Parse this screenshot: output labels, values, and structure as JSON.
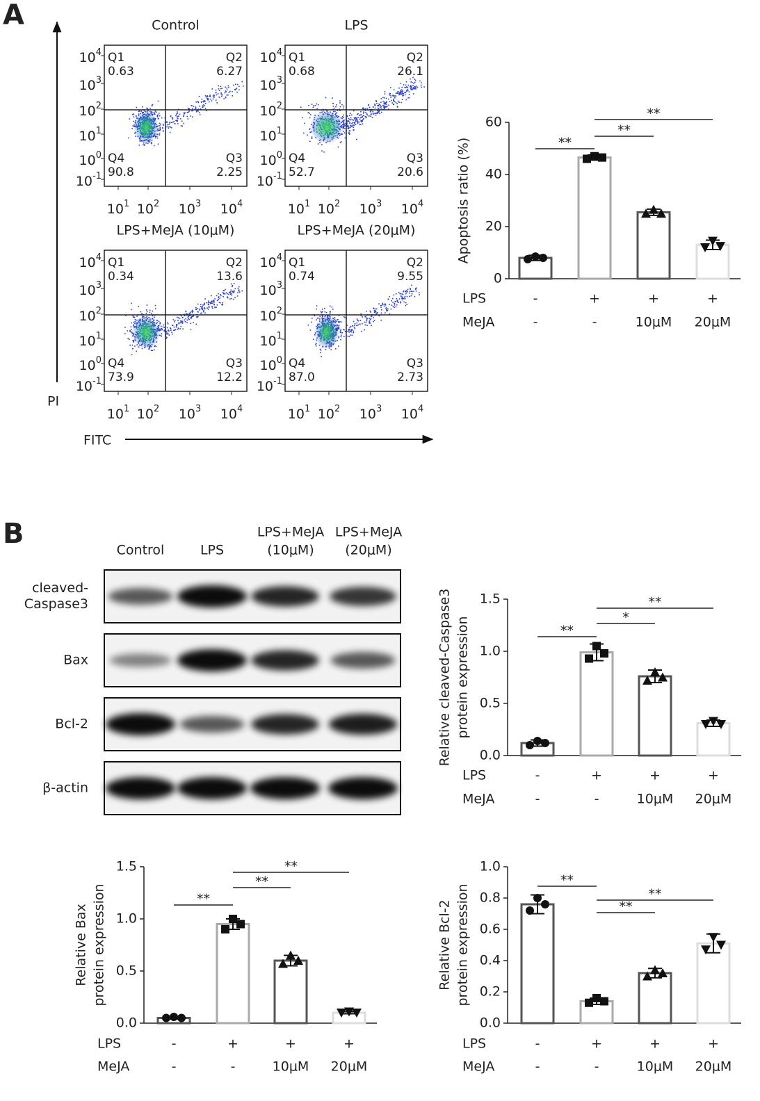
{
  "panel_labels": [
    "A",
    "B"
  ],
  "flow": {
    "y_axis_label": "PI",
    "x_axis_label": "FITC",
    "yticks": [
      {
        "base": "10",
        "exp": "4"
      },
      {
        "base": "10",
        "exp": "3"
      },
      {
        "base": "10",
        "exp": "2"
      },
      {
        "base": "10",
        "exp": "1"
      },
      {
        "base": "10",
        "exp": "0"
      },
      {
        "base": "10",
        "exp": "-1"
      }
    ],
    "xticks": [
      {
        "base": "10",
        "exp": "1"
      },
      {
        "base": "10",
        "exp": "2"
      },
      {
        "base": "10",
        "exp": "3"
      },
      {
        "base": "10",
        "exp": "4"
      }
    ],
    "plots": [
      {
        "title": "Control",
        "quadrants": [
          {
            "name": "Q1",
            "value": "0.63"
          },
          {
            "name": "Q2",
            "value": "6.27"
          },
          {
            "name": "Q3",
            "value": "2.25"
          },
          {
            "name": "Q4",
            "value": "90.8"
          }
        ]
      },
      {
        "title": "LPS",
        "quadrants": [
          {
            "name": "Q1",
            "value": "0.68"
          },
          {
            "name": "Q2",
            "value": "26.1"
          },
          {
            "name": "Q3",
            "value": "20.6"
          },
          {
            "name": "Q4",
            "value": "52.7"
          }
        ]
      },
      {
        "title": "LPS+MeJA (10μM)",
        "quadrants": [
          {
            "name": "Q1",
            "value": "0.34"
          },
          {
            "name": "Q2",
            "value": "13.6"
          },
          {
            "name": "Q3",
            "value": "12.2"
          },
          {
            "name": "Q4",
            "value": "73.9"
          }
        ]
      },
      {
        "title": "LPS+MeJA (20μM)",
        "quadrants": [
          {
            "name": "Q1",
            "value": "0.74"
          },
          {
            "name": "Q2",
            "value": "9.55"
          },
          {
            "name": "Q3",
            "value": "2.73"
          },
          {
            "name": "Q4",
            "value": "87.0"
          }
        ]
      }
    ]
  },
  "blot": {
    "columns": [
      [
        "Control"
      ],
      [
        "LPS"
      ],
      [
        "LPS+MeJA",
        "(10μM)"
      ],
      [
        "LPS+MeJA",
        "(20μM)"
      ]
    ],
    "rows": [
      [
        "cleaved-",
        "Caspase3"
      ],
      [
        "Bax"
      ],
      [
        "Bcl-2"
      ],
      [
        "β-actin"
      ]
    ]
  },
  "chart_data": [
    {
      "type": "bar",
      "ylabel": [
        "Apoptosis ratio (%)"
      ],
      "category_rows": [
        {
          "name": "LPS",
          "labels": [
            "-",
            "+",
            "+",
            "+"
          ]
        },
        {
          "name": "MeJA",
          "labels": [
            "-",
            "-",
            "10μM",
            "20μM"
          ]
        }
      ],
      "values": [
        8,
        46.5,
        25.5,
        13
      ],
      "errors": [
        1,
        1,
        1.2,
        1.8
      ],
      "points": [
        [
          7.5,
          8.5,
          8
        ],
        [
          46,
          47,
          46.5
        ],
        [
          25,
          26.5,
          25
        ],
        [
          12,
          14.5,
          12.5
        ]
      ],
      "markers": [
        "circle",
        "square",
        "triangle",
        "triangle-down"
      ],
      "colors": [
        "#555555",
        "#aaaaaa",
        "#555555",
        "#dddddd"
      ],
      "ylim": [
        0,
        60
      ],
      "yticks": [
        0,
        20,
        40,
        60
      ],
      "significance": [
        {
          "groups": [
            0,
            1
          ],
          "label": "**"
        },
        {
          "groups": [
            1,
            2
          ],
          "label": "**"
        },
        {
          "groups": [
            1,
            3
          ],
          "label": "**"
        }
      ]
    },
    {
      "type": "bar",
      "ylabel": [
        "Relative cleaved-Caspase3",
        "protein expression"
      ],
      "category_rows": [
        {
          "name": "LPS",
          "labels": [
            "-",
            "+",
            "+",
            "+"
          ]
        },
        {
          "name": "MeJA",
          "labels": [
            "-",
            "-",
            "10μM",
            "20μM"
          ]
        }
      ],
      "values": [
        0.12,
        0.99,
        0.76,
        0.31
      ],
      "errors": [
        0.03,
        0.08,
        0.06,
        0.03
      ],
      "points": [
        [
          0.1,
          0.14,
          0.12
        ],
        [
          0.93,
          1.05,
          0.98
        ],
        [
          0.72,
          0.8,
          0.75
        ],
        [
          0.3,
          0.33,
          0.3
        ]
      ],
      "markers": [
        "circle",
        "square",
        "triangle",
        "triangle-down"
      ],
      "colors": [
        "#555555",
        "#aaaaaa",
        "#555555",
        "#dddddd"
      ],
      "ylim": [
        0,
        1.5
      ],
      "yticks": [
        {
          "value": 0,
          "label": "0.0"
        },
        0.5,
        {
          "value": 1,
          "label": "1.0"
        },
        1.5
      ],
      "significance": [
        {
          "groups": [
            0,
            1
          ],
          "label": "**"
        },
        {
          "groups": [
            1,
            2
          ],
          "label": "*"
        },
        {
          "groups": [
            1,
            3
          ],
          "label": "**"
        }
      ]
    },
    {
      "type": "bar",
      "ylabel": [
        "Relative Bax",
        "protein expression"
      ],
      "category_rows": [
        {
          "name": "LPS",
          "labels": [
            "-",
            "+",
            "+",
            "+"
          ]
        },
        {
          "name": "MeJA",
          "labels": [
            "-",
            "-",
            "10μM",
            "20μM"
          ]
        }
      ],
      "values": [
        0.05,
        0.95,
        0.6,
        0.1
      ],
      "errors": [
        0.01,
        0.05,
        0.05,
        0.01
      ],
      "points": [
        [
          0.05,
          0.06,
          0.05
        ],
        [
          0.9,
          1.0,
          0.95
        ],
        [
          0.57,
          0.65,
          0.6
        ],
        [
          0.1,
          0.11,
          0.1
        ]
      ],
      "markers": [
        "circle",
        "square",
        "triangle",
        "triangle-down"
      ],
      "colors": [
        "#555555",
        "#aaaaaa",
        "#555555",
        "#dddddd"
      ],
      "ylim": [
        0,
        1.5
      ],
      "yticks": [
        {
          "value": 0,
          "label": "0.0"
        },
        0.5,
        {
          "value": 1,
          "label": "1.0"
        },
        1.5
      ],
      "significance": [
        {
          "groups": [
            0,
            1
          ],
          "label": "**"
        },
        {
          "groups": [
            1,
            2
          ],
          "label": "**"
        },
        {
          "groups": [
            1,
            3
          ],
          "label": "**"
        }
      ]
    },
    {
      "type": "bar",
      "ylabel": [
        "Relative Bcl-2",
        "protein expression"
      ],
      "category_rows": [
        {
          "name": "LPS",
          "labels": [
            "-",
            "+",
            "+",
            "+"
          ]
        },
        {
          "name": "MeJA",
          "labels": [
            "-",
            "-",
            "10μM",
            "20μM"
          ]
        }
      ],
      "values": [
        0.76,
        0.14,
        0.32,
        0.51
      ],
      "errors": [
        0.06,
        0.02,
        0.03,
        0.06
      ],
      "points": [
        [
          0.72,
          0.8,
          0.76
        ],
        [
          0.13,
          0.16,
          0.14
        ],
        [
          0.3,
          0.34,
          0.32
        ],
        [
          0.47,
          0.55,
          0.5
        ]
      ],
      "markers": [
        "circle",
        "square",
        "triangle",
        "triangle-down"
      ],
      "colors": [
        "#555555",
        "#aaaaaa",
        "#555555",
        "#dddddd"
      ],
      "ylim": [
        0,
        1
      ],
      "yticks": [
        {
          "value": 0,
          "label": "0.0"
        },
        0.2,
        0.4,
        0.6,
        0.8,
        {
          "value": 1,
          "label": "1.0"
        }
      ],
      "significance": [
        {
          "groups": [
            0,
            1
          ],
          "label": "**"
        },
        {
          "groups": [
            1,
            2
          ],
          "label": "**"
        },
        {
          "groups": [
            1,
            3
          ],
          "label": "**"
        }
      ]
    }
  ]
}
